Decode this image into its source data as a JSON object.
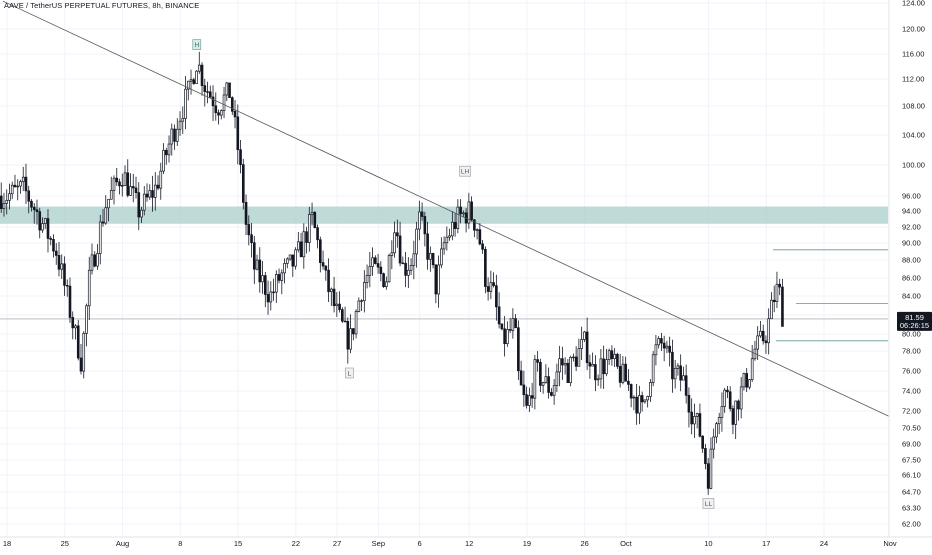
{
  "symbol_title": "AAVE / TetherUS PERPETUAL FUTURES, 8h, BINANCE",
  "price_tag": {
    "price": "81.59",
    "countdown": "06:26:15"
  },
  "colors": {
    "up": "#131722",
    "down": "#131722",
    "grid": "#f0f3fa",
    "zone": "#a9cfcb",
    "hline": "#5d9a8f",
    "trendline": "#555555",
    "tag_bg": "#131722"
  },
  "chart_data": {
    "type": "candlestick",
    "title": "AAVE / TetherUS PERPETUAL FUTURES, 8h, BINANCE",
    "interval": "8h",
    "ylim": [
      61.5,
      124.5
    ],
    "y_ticks": [
      "124.00",
      "120.00",
      "116.00",
      "112.00",
      "108.00",
      "104.00",
      "100.00",
      "96.00",
      "94.00",
      "92.00",
      "90.00",
      "88.00",
      "86.00",
      "84.00",
      "82.00",
      "80.00",
      "78.00",
      "76.00",
      "74.00",
      "72.00",
      "70.50",
      "69.00",
      "67.50",
      "66.10",
      "64.70",
      "63.30",
      "62.00"
    ],
    "x_ticks": [
      {
        "label": "18",
        "day": 18
      },
      {
        "label": "25",
        "day": 25
      },
      {
        "label": "Aug",
        "day": 32
      },
      {
        "label": "8",
        "day": 39
      },
      {
        "label": "15",
        "day": 46
      },
      {
        "label": "22",
        "day": 53
      },
      {
        "label": "27",
        "day": 58
      },
      {
        "label": "Sep",
        "day": 63
      },
      {
        "label": "6",
        "day": 68
      },
      {
        "label": "12",
        "day": 74
      },
      {
        "label": "19",
        "day": 81
      },
      {
        "label": "26",
        "day": 88
      },
      {
        "label": "Oct",
        "day": 93
      },
      {
        "label": "10",
        "day": 103
      },
      {
        "label": "17",
        "day": 110
      },
      {
        "label": "24",
        "day": 117
      },
      {
        "label": "Nov",
        "day": 125
      }
    ],
    "price_path": [
      [
        18,
        96
      ],
      [
        20,
        97
      ],
      [
        22,
        93
      ],
      [
        24,
        89
      ],
      [
        26,
        81
      ],
      [
        27,
        77
      ],
      [
        28,
        86
      ],
      [
        30,
        95
      ],
      [
        32,
        99
      ],
      [
        34,
        94
      ],
      [
        36,
        97
      ],
      [
        38,
        104
      ],
      [
        40,
        110
      ],
      [
        41,
        115
      ],
      [
        42,
        111
      ],
      [
        43.5,
        108
      ],
      [
        45,
        110
      ],
      [
        46,
        102
      ],
      [
        47,
        92
      ],
      [
        48,
        87
      ],
      [
        50,
        84
      ],
      [
        51,
        86
      ],
      [
        53,
        88
      ],
      [
        55,
        93
      ],
      [
        56.5,
        86
      ],
      [
        58,
        82
      ],
      [
        59.5,
        79
      ],
      [
        61,
        85
      ],
      [
        62,
        87
      ],
      [
        64,
        86
      ],
      [
        65,
        93
      ],
      [
        66,
        87
      ],
      [
        67,
        88
      ],
      [
        68,
        93
      ],
      [
        70,
        85
      ],
      [
        71,
        90
      ],
      [
        72.5,
        93
      ],
      [
        74,
        94
      ],
      [
        75,
        92
      ],
      [
        76,
        86
      ],
      [
        77,
        84
      ],
      [
        78,
        79
      ],
      [
        79.5,
        81
      ],
      [
        80,
        75
      ],
      [
        81,
        72
      ],
      [
        82,
        76
      ],
      [
        84,
        74
      ],
      [
        85,
        77
      ],
      [
        86,
        76
      ],
      [
        88,
        79
      ],
      [
        89,
        76
      ],
      [
        91,
        77
      ],
      [
        93,
        75
      ],
      [
        95,
        72
      ],
      [
        96.5,
        78
      ],
      [
        97.5,
        79
      ],
      [
        98.5,
        76
      ],
      [
        100,
        75
      ],
      [
        101,
        72
      ],
      [
        102,
        70
      ],
      [
        103,
        66
      ],
      [
        104,
        72
      ],
      [
        105,
        74
      ],
      [
        106,
        72
      ],
      [
        107,
        74
      ],
      [
        108,
        76
      ],
      [
        108.5,
        78
      ],
      [
        110,
        80
      ],
      [
        111,
        84
      ],
      [
        111.5,
        85
      ],
      [
        112,
        82
      ]
    ],
    "zone": [
      92.4,
      94.6
    ],
    "horizontal_lines": [
      89.2,
      83.2,
      79.2,
      81.59
    ],
    "trendline": [
      [
        17.5,
        124.3
      ],
      [
        127,
        70.8
      ]
    ],
    "annotations": [
      {
        "label": "H",
        "day": 41,
        "price": 117.5
      },
      {
        "label": "LH",
        "day": 73.5,
        "price": 99.2
      },
      {
        "label": "L",
        "day": 59.5,
        "price": 75.8
      },
      {
        "label": "LL",
        "day": 103,
        "price": 63.7
      }
    ],
    "last_price": 81.59
  }
}
